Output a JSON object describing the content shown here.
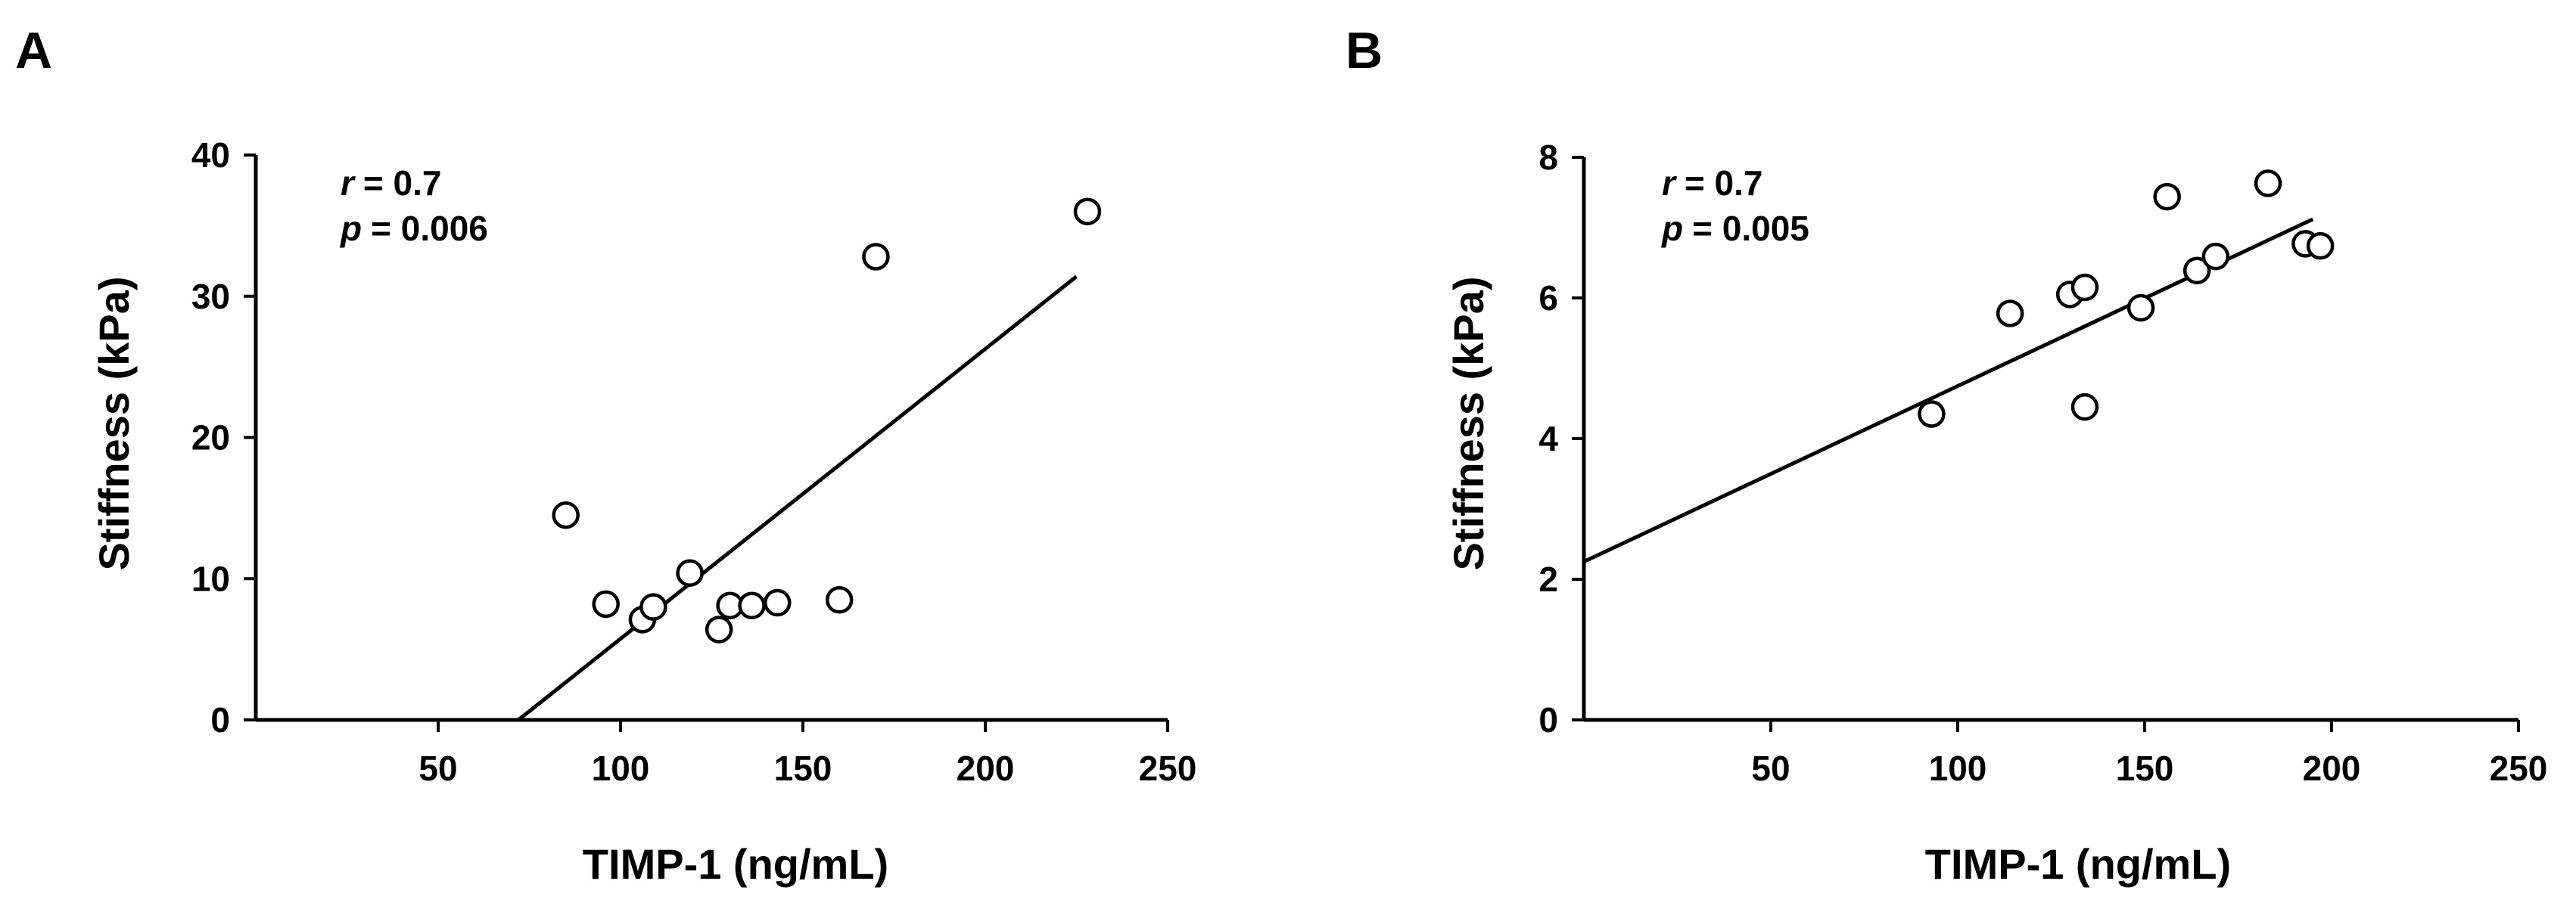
{
  "figure": {
    "background": "#ffffff",
    "ink": "#000000"
  },
  "chart_data": [
    {
      "panel": "A",
      "type": "scatter",
      "title": "",
      "xlabel": "TIMP-1 (ng/mL)",
      "ylabel": "Stiffness (kPa)",
      "xlim": [
        0,
        250
      ],
      "ylim": [
        0,
        40
      ],
      "xticks": [
        50,
        100,
        150,
        200,
        250
      ],
      "yticks": [
        0,
        10,
        20,
        30,
        40
      ],
      "annotation": {
        "r_symbol": "r",
        "r_value": "= 0.7",
        "p_symbol": "p",
        "p_value": "= 0.006"
      },
      "points": [
        {
          "x": 85,
          "y": 14.5
        },
        {
          "x": 96,
          "y": 8.2
        },
        {
          "x": 106,
          "y": 7.1
        },
        {
          "x": 109,
          "y": 8.0
        },
        {
          "x": 119,
          "y": 10.4
        },
        {
          "x": 127,
          "y": 6.4
        },
        {
          "x": 130,
          "y": 8.1
        },
        {
          "x": 136,
          "y": 8.1
        },
        {
          "x": 143,
          "y": 8.3
        },
        {
          "x": 160,
          "y": 8.5
        },
        {
          "x": 170,
          "y": 32.8
        },
        {
          "x": 228,
          "y": 36.0
        }
      ],
      "fit_line": {
        "x": [
          72,
          225
        ],
        "y": [
          0,
          31.4
        ]
      }
    },
    {
      "panel": "B",
      "type": "scatter",
      "title": "",
      "xlabel": "TIMP-1 (ng/mL)",
      "ylabel": "Stiffness (kPa)",
      "xlim": [
        0,
        250
      ],
      "ylim": [
        0,
        8
      ],
      "xticks": [
        50,
        100,
        150,
        200,
        250
      ],
      "yticks": [
        0,
        2,
        4,
        6,
        8
      ],
      "annotation": {
        "r_symbol": "r",
        "r_value": "= 0.7",
        "p_symbol": "p",
        "p_value": "= 0.005"
      },
      "points": [
        {
          "x": 93,
          "y": 4.35
        },
        {
          "x": 114,
          "y": 5.78
        },
        {
          "x": 130,
          "y": 6.05
        },
        {
          "x": 134,
          "y": 6.15
        },
        {
          "x": 134,
          "y": 4.45
        },
        {
          "x": 149,
          "y": 5.86
        },
        {
          "x": 156,
          "y": 7.44
        },
        {
          "x": 164,
          "y": 6.39
        },
        {
          "x": 169,
          "y": 6.59
        },
        {
          "x": 183,
          "y": 7.63
        },
        {
          "x": 193,
          "y": 6.77
        },
        {
          "x": 197,
          "y": 6.74
        }
      ],
      "fit_line": {
        "x": [
          0,
          195
        ],
        "y": [
          2.25,
          7.12
        ]
      }
    }
  ]
}
